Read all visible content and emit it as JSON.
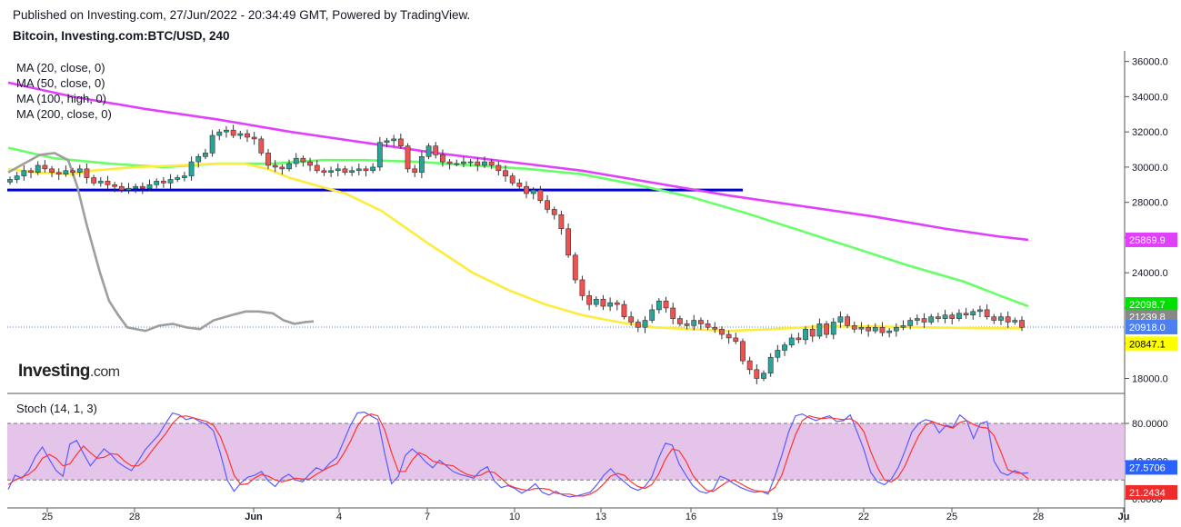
{
  "header": {
    "published": "Published on Investing.com, 27/Jun/2022 - 20:34:49 GMT, Powered by TradingView.",
    "symbol": "Bitcoin, Investing.com:BTC/USD, 240"
  },
  "legend": {
    "ma20": "MA (20, close, 0)",
    "ma50": "MA (50, close, 0)",
    "ma100": "MA (100, high, 0)",
    "ma200": "MA (200, close, 0)",
    "stoch": "Stoch (14, 1, 3)"
  },
  "logo": {
    "main": "Investing",
    "suffix": ".com"
  },
  "colors": {
    "up": "#26a69a",
    "down": "#ef5350",
    "ma20": "#9e9e9e",
    "ma50": "#ffeb3b",
    "ma100": "#66ff66",
    "ma200": "#e040fb",
    "support": "#0000cc",
    "stoch_k": "#5b5bff",
    "stoch_d": "#ff3333",
    "stoch_band": "#e1bee7"
  },
  "chart_data": [
    {
      "type": "candlestick",
      "title": "Bitcoin, Investing.com:BTC/USD, 240",
      "x_tick_labels": [
        "25",
        "28",
        "Jun",
        "4",
        "7",
        "10",
        "13",
        "16",
        "19",
        "22",
        "25",
        "28",
        "Ju"
      ],
      "y_tick_labels": [
        "18000.0",
        "20000.0",
        "22000.0",
        "24000.0",
        "26000.0",
        "28000.0",
        "30000.0",
        "32000.0",
        "34000.0",
        "36000.0"
      ],
      "ylim": [
        17200,
        36600
      ],
      "price_labels": [
        {
          "value": 25869.9,
          "text": "25869.9",
          "color": "#e040fb"
        },
        {
          "value": 22098.7,
          "text": "22098.7",
          "color": "#00e000"
        },
        {
          "value": 21239.8,
          "text": "21239.8",
          "color": "#888888"
        },
        {
          "value": 20918.0,
          "text": "20918.0",
          "color": "#4c7ff0"
        },
        {
          "value": 20847.1,
          "text": "20847.1",
          "color": "#ffff00"
        }
      ],
      "last_price": 20918.0,
      "support_level": 28700,
      "closes": [
        29300,
        29500,
        29800,
        29700,
        30100,
        29900,
        29700,
        29600,
        29800,
        29700,
        29900,
        29400,
        29100,
        29200,
        29000,
        28900,
        28700,
        28800,
        28900,
        28800,
        29000,
        29200,
        29100,
        29300,
        29400,
        29500,
        30300,
        30600,
        30800,
        31800,
        32000,
        32100,
        31800,
        31900,
        31700,
        31600,
        30800,
        30100,
        30000,
        29900,
        30200,
        30500,
        30300,
        30100,
        29800,
        29700,
        29800,
        29900,
        29700,
        29800,
        29900,
        29800,
        30000,
        31400,
        31500,
        31600,
        31200,
        29900,
        29700,
        30600,
        31200,
        30700,
        30300,
        30200,
        30200,
        30300,
        30300,
        30100,
        30300,
        30100,
        29800,
        29500,
        29100,
        28900,
        28500,
        28700,
        28100,
        27600,
        27300,
        26500,
        25000,
        23600,
        22700,
        22200,
        22500,
        22100,
        22300,
        22200,
        21500,
        21200,
        20900,
        21300,
        21900,
        22400,
        22000,
        21400,
        21100,
        21000,
        21300,
        21100,
        20900,
        20800,
        20500,
        20300,
        20100,
        19000,
        18500,
        18000,
        18300,
        19200,
        19600,
        19900,
        20300,
        20200,
        20800,
        20400,
        21100,
        20500,
        21200,
        21500,
        21000,
        20800,
        20900,
        20700,
        20900,
        20600,
        20700,
        20900,
        21000,
        21300,
        21400,
        21200,
        21500,
        21400,
        21600,
        21400,
        21700,
        21600,
        21800,
        21900,
        21500,
        21300,
        21500,
        21200,
        21300,
        20900
      ],
      "ma20": [
        [
          9,
          29700
        ],
        [
          30,
          30300
        ],
        [
          44,
          30700
        ],
        [
          60,
          30800
        ],
        [
          75,
          30400
        ],
        [
          85,
          28900
        ],
        [
          95,
          26800
        ],
        [
          110,
          24000
        ],
        [
          120,
          22400
        ],
        [
          130,
          21600
        ],
        [
          140,
          20900
        ],
        [
          150,
          20800
        ],
        [
          160,
          20700
        ],
        [
          175,
          21000
        ],
        [
          190,
          21100
        ],
        [
          205,
          20900
        ],
        [
          220,
          20800
        ],
        [
          235,
          21300
        ],
        [
          255,
          21600
        ],
        [
          270,
          21800
        ],
        [
          285,
          21800
        ],
        [
          300,
          21700
        ],
        [
          312,
          21300
        ],
        [
          324,
          21100
        ],
        [
          336,
          21200
        ],
        [
          345,
          21240
        ]
      ],
      "ma50": [
        [
          9,
          29900
        ],
        [
          40,
          29700
        ],
        [
          80,
          29600
        ],
        [
          100,
          29800
        ],
        [
          150,
          30000
        ],
        [
          200,
          30100
        ],
        [
          240,
          30200
        ],
        [
          268,
          30200
        ],
        [
          294,
          29900
        ],
        [
          318,
          29400
        ],
        [
          345,
          29000
        ],
        [
          380,
          28500
        ],
        [
          420,
          27500
        ],
        [
          470,
          25700
        ],
        [
          520,
          24000
        ],
        [
          560,
          23000
        ],
        [
          600,
          22200
        ],
        [
          640,
          21600
        ],
        [
          680,
          21200
        ],
        [
          720,
          20900
        ],
        [
          760,
          20800
        ],
        [
          800,
          20700
        ],
        [
          850,
          20800
        ],
        [
          900,
          20950
        ],
        [
          960,
          20950
        ],
        [
          1020,
          20900
        ],
        [
          1080,
          20850
        ],
        [
          1125,
          20847
        ]
      ],
      "ma100": [
        [
          9,
          31100
        ],
        [
          60,
          30500
        ],
        [
          120,
          30200
        ],
        [
          180,
          30000
        ],
        [
          240,
          30200
        ],
        [
          300,
          30200
        ],
        [
          355,
          30400
        ],
        [
          400,
          30400
        ],
        [
          460,
          30300
        ],
        [
          520,
          30100
        ],
        [
          580,
          29900
        ],
        [
          640,
          29600
        ],
        [
          700,
          29000
        ],
        [
          760,
          28300
        ],
        [
          820,
          27400
        ],
        [
          880,
          26400
        ],
        [
          940,
          25400
        ],
        [
          1000,
          24400
        ],
        [
          1060,
          23500
        ],
        [
          1100,
          22700
        ],
        [
          1131,
          22100
        ]
      ],
      "ma200": [
        [
          9,
          34800
        ],
        [
          80,
          34000
        ],
        [
          160,
          33300
        ],
        [
          240,
          32700
        ],
        [
          320,
          32000
        ],
        [
          400,
          31400
        ],
        [
          480,
          30800
        ],
        [
          560,
          30300
        ],
        [
          640,
          29800
        ],
        [
          720,
          29100
        ],
        [
          800,
          28400
        ],
        [
          880,
          27800
        ],
        [
          960,
          27200
        ],
        [
          1040,
          26500
        ],
        [
          1100,
          26050
        ],
        [
          1131,
          25870
        ]
      ]
    },
    {
      "type": "line",
      "title": "Stoch (14, 1, 3)",
      "y_tick_labels": [
        "0.0000",
        "40.0000",
        "80.0000"
      ],
      "ylim": [
        -5,
        100
      ],
      "bands": [
        20,
        80
      ],
      "value_labels": [
        {
          "value": 27.5706,
          "text": "27.5706",
          "color": "#2962ff"
        },
        {
          "value": 21.2434,
          "text": "21.2434",
          "color": "#ef2b2b"
        }
      ],
      "series": [
        {
          "label": "%K",
          "values": [
            10,
            25,
            22,
            30,
            45,
            55,
            42,
            30,
            24,
            58,
            62,
            48,
            35,
            44,
            53,
            47,
            39,
            34,
            30,
            40,
            52,
            60,
            68,
            80,
            91,
            89,
            84,
            86,
            82,
            79,
            72,
            48,
            20,
            8,
            17,
            23,
            25,
            29,
            19,
            13,
            22,
            26,
            20,
            18,
            26,
            33,
            30,
            38,
            44,
            61,
            78,
            91,
            92,
            88,
            84,
            48,
            16,
            24,
            46,
            53,
            47,
            39,
            33,
            41,
            35,
            29,
            26,
            24,
            22,
            30,
            34,
            19,
            12,
            14,
            11,
            6,
            10,
            16,
            7,
            4,
            8,
            4,
            2,
            3,
            5,
            7,
            15,
            25,
            32,
            24,
            18,
            12,
            9,
            13,
            23,
            43,
            59,
            57,
            37,
            25,
            14,
            8,
            6,
            10,
            24,
            21,
            16,
            12,
            9,
            7,
            8,
            5,
            24,
            46,
            71,
            88,
            90,
            86,
            83,
            86,
            88,
            82,
            83,
            89,
            71,
            52,
            28,
            18,
            15,
            21,
            33,
            51,
            71,
            80,
            84,
            82,
            70,
            78,
            76,
            89,
            83,
            64,
            80,
            82,
            40,
            28,
            25,
            30,
            27,
            27.57
          ]
        },
        {
          "label": "%D",
          "values": [
            15,
            20,
            23,
            26,
            32,
            43,
            47,
            43,
            35,
            37,
            47,
            56,
            49,
            43,
            44,
            48,
            47,
            40,
            35,
            35,
            41,
            51,
            60,
            69,
            80,
            87,
            88,
            86,
            84,
            82,
            78,
            66,
            47,
            25,
            15,
            16,
            22,
            26,
            24,
            20,
            18,
            20,
            22,
            21,
            21,
            26,
            30,
            34,
            37,
            48,
            61,
            77,
            87,
            90,
            88,
            73,
            49,
            29,
            29,
            41,
            49,
            46,
            40,
            38,
            36,
            35,
            30,
            26,
            24,
            25,
            29,
            28,
            22,
            15,
            12,
            10,
            9,
            11,
            11,
            10,
            6,
            5,
            5,
            3,
            3,
            5,
            9,
            16,
            24,
            27,
            25,
            18,
            13,
            11,
            15,
            26,
            42,
            53,
            51,
            40,
            25,
            16,
            9,
            8,
            13,
            18,
            20,
            16,
            12,
            9,
            8,
            7,
            12,
            25,
            47,
            68,
            83,
            88,
            86,
            85,
            86,
            85,
            84,
            85,
            81,
            71,
            50,
            33,
            20,
            18,
            23,
            35,
            52,
            67,
            78,
            82,
            79,
            77,
            75,
            81,
            83,
            79,
            76,
            75,
            67,
            50,
            31,
            28,
            27,
            21.24
          ]
        }
      ]
    }
  ]
}
